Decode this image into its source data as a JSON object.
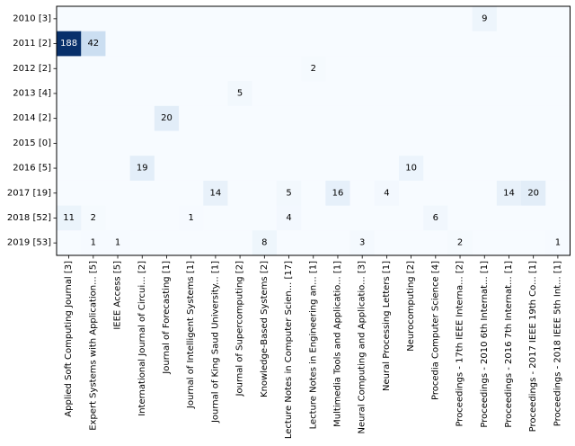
{
  "chart_data": {
    "type": "heatmap",
    "title": "",
    "xlabel": "",
    "ylabel": "",
    "colormap": "Blues",
    "color_scale": {
      "min": 0,
      "max": 188,
      "low": "#f7fbff",
      "high": "#08306b"
    },
    "x_categories": [
      "Applied Soft Computing Journal [3]",
      "Expert Systems with Application... [5]",
      "IEEE Access [5]",
      "International Journal of Circui... [2]",
      "Journal of Forecasting [1]",
      "Journal of Intelligent Systems [1]",
      "Journal of King Saud University... [1]",
      "Journal of Supercomputing [2]",
      "Knowledge-Based Systems [2]",
      "Lecture Notes in Computer Scien... [17]",
      "Lecture Notes in Engineering an... [1]",
      "Multimedia Tools and Applicatio... [1]",
      "Neural Computing and Applicatio... [3]",
      "Neural Processing Letters [1]",
      "Neurocomputing [2]",
      "Procedia Computer Science [4]",
      "Proceedings - 17th IEEE Interna... [2]",
      "Proceedings - 2010 6th Internat... [1]",
      "Proceedings - 2016 7th Internat... [1]",
      "Proceedings - 2017 IEEE 19th Co... [1]",
      "Proceedings - 2018 IEEE 5th Int... [1]"
    ],
    "y_categories": [
      "2010 [3]",
      "2011 [2]",
      "2012 [2]",
      "2013 [4]",
      "2014 [2]",
      "2015 [0]",
      "2016 [5]",
      "2017 [19]",
      "2018 [52]",
      "2019 [53]"
    ],
    "values": [
      [
        0,
        0,
        0,
        0,
        0,
        0,
        0,
        0,
        0,
        0,
        0,
        0,
        0,
        0,
        0,
        0,
        0,
        9,
        0,
        0,
        0
      ],
      [
        188,
        42,
        0,
        0,
        0,
        0,
        0,
        0,
        0,
        0,
        0,
        0,
        0,
        0,
        0,
        0,
        0,
        0,
        0,
        0,
        0
      ],
      [
        0,
        0,
        0,
        0,
        0,
        0,
        0,
        0,
        0,
        0,
        2,
        0,
        0,
        0,
        0,
        0,
        0,
        0,
        0,
        0,
        0
      ],
      [
        0,
        0,
        0,
        0,
        0,
        0,
        0,
        5,
        0,
        0,
        0,
        0,
        0,
        0,
        0,
        0,
        0,
        0,
        0,
        0,
        0
      ],
      [
        0,
        0,
        0,
        0,
        20,
        0,
        0,
        0,
        0,
        0,
        0,
        0,
        0,
        0,
        0,
        0,
        0,
        0,
        0,
        0,
        0
      ],
      [
        0,
        0,
        0,
        0,
        0,
        0,
        0,
        0,
        0,
        0,
        0,
        0,
        0,
        0,
        0,
        0,
        0,
        0,
        0,
        0,
        0
      ],
      [
        0,
        0,
        0,
        19,
        0,
        0,
        0,
        0,
        0,
        0,
        0,
        0,
        0,
        0,
        10,
        0,
        0,
        0,
        0,
        0,
        0
      ],
      [
        0,
        0,
        0,
        0,
        0,
        0,
        14,
        0,
        0,
        5,
        0,
        16,
        0,
        4,
        0,
        0,
        0,
        0,
        14,
        20,
        0
      ],
      [
        11,
        2,
        0,
        0,
        0,
        1,
        0,
        0,
        0,
        4,
        0,
        0,
        0,
        0,
        0,
        6,
        0,
        0,
        0,
        0,
        0
      ],
      [
        0,
        1,
        1,
        0,
        0,
        0,
        0,
        0,
        8,
        0,
        0,
        0,
        3,
        0,
        0,
        0,
        2,
        0,
        0,
        0,
        1
      ]
    ],
    "show_zero_labels": false,
    "grid": false,
    "legend": "none"
  }
}
